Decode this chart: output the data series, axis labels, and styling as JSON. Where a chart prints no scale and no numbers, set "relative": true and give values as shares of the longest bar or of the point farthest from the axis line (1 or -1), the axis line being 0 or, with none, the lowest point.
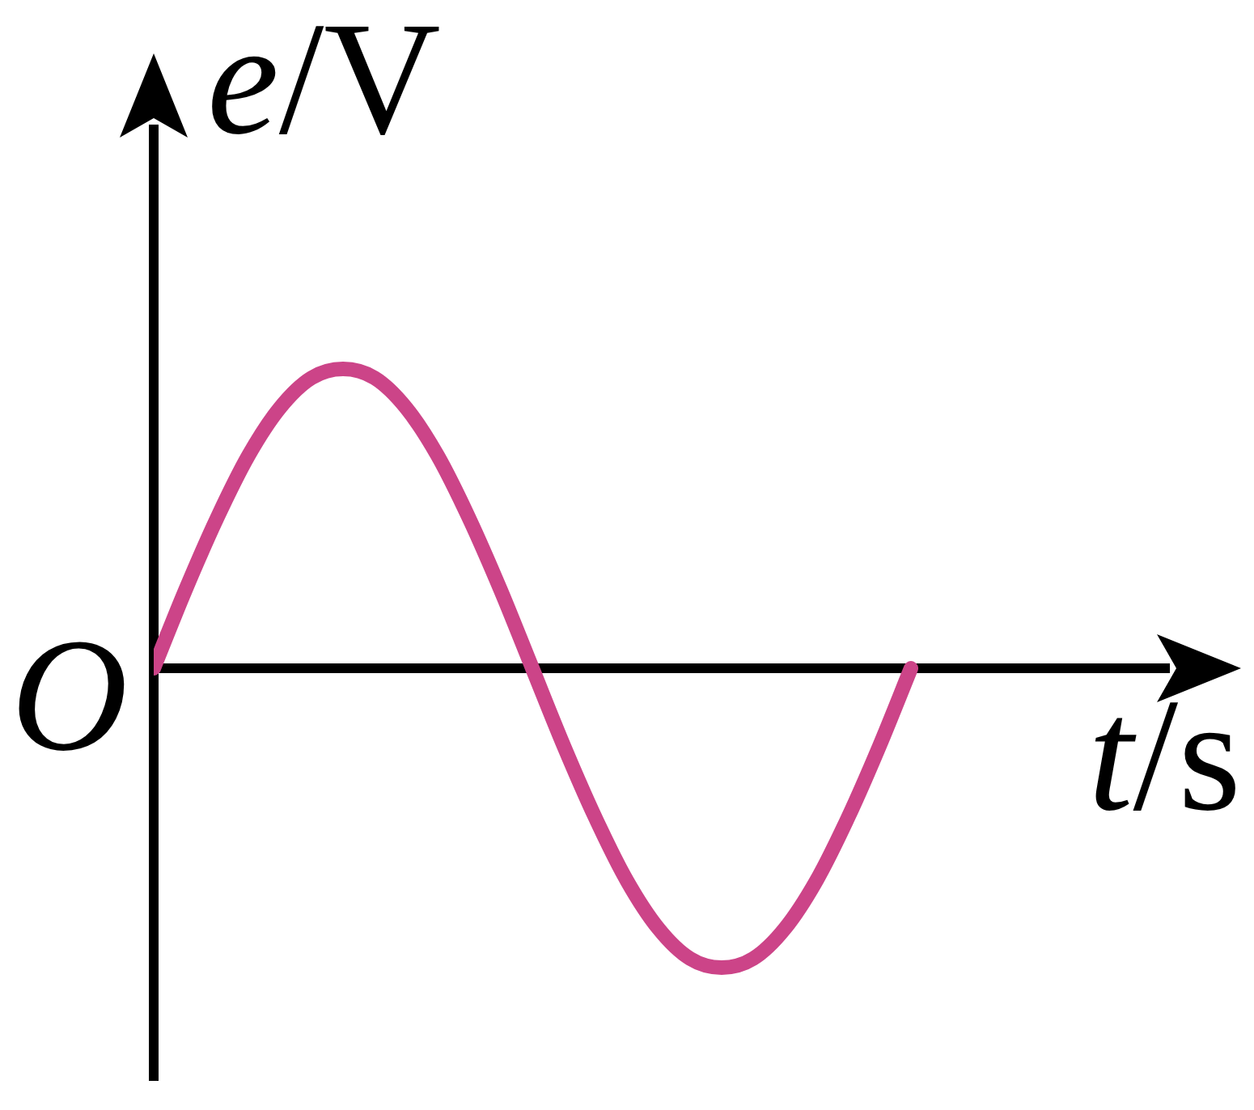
{
  "chart_data": {
    "type": "line",
    "xlabel": "t/s",
    "ylabel": "e/V",
    "annotations": [
      "O"
    ],
    "categories": [
      null,
      null,
      null,
      null,
      null,
      null,
      null,
      null,
      null,
      null,
      null,
      null,
      null,
      null,
      null,
      null,
      null,
      null,
      null,
      null,
      null,
      null,
      null,
      null,
      null
    ],
    "series": [
      {
        "color": "#cc4488",
        "values": [
          0,
          0.26,
          0.5,
          0.71,
          0.87,
          0.97,
          1,
          0.97,
          0.87,
          0.71,
          0.5,
          0.26,
          0,
          -0.26,
          -0.5,
          -0.71,
          -0.87,
          -0.97,
          -1,
          -0.97,
          -0.87,
          -0.71,
          -0.5,
          -0.26,
          0
        ]
      }
    ],
    "relative": true
  }
}
